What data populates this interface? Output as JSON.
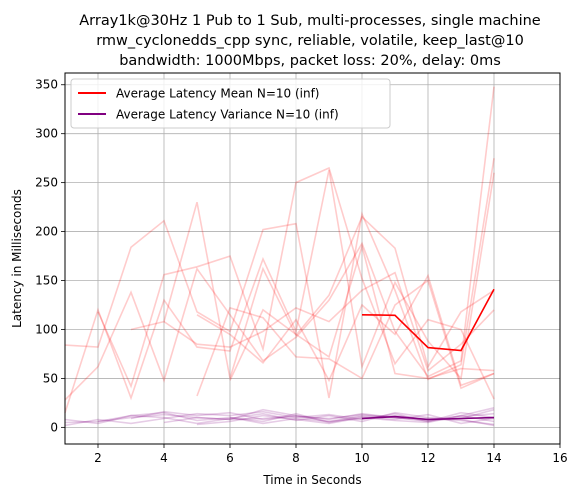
{
  "chart_data": {
    "type": "line",
    "title_lines": [
      "Array1k@30Hz 1 Pub to 1 Sub, multi-processes, single machine",
      "rmw_cyclonedds_cpp sync, reliable, volatile, keep_last@10",
      "bandwidth: 1000Mbps, packet loss: 20%, delay: 0ms"
    ],
    "xlabel": "Time in Seconds",
    "ylabel": "Latency in Milliseconds",
    "xlim": [
      1,
      16
    ],
    "ylim": [
      -17,
      362
    ],
    "xticks": [
      2,
      4,
      6,
      8,
      10,
      12,
      14,
      16
    ],
    "yticks": [
      0,
      50,
      100,
      150,
      200,
      250,
      300,
      350
    ],
    "grid": true,
    "legend_position": "top-left",
    "series": [
      {
        "name": "Average Latency Mean N=10 (inf)",
        "color": "#ff0000",
        "x": [
          10,
          11,
          12,
          13,
          14
        ],
        "y": [
          115,
          114.5,
          81.5,
          78.5,
          141
        ]
      },
      {
        "name": "Average Latency Variance N=10 (inf)",
        "color": "#800080",
        "x": [
          10,
          11,
          12,
          13,
          14
        ],
        "y": [
          9,
          11,
          8,
          9,
          10
        ]
      }
    ],
    "background_mean_runs": [
      {
        "x": [
          1,
          2,
          3,
          4,
          5,
          6,
          7,
          8,
          9,
          10,
          11,
          12,
          13,
          14
        ],
        "y": [
          28,
          62,
          138,
          48,
          162,
          115,
          68,
          92,
          130,
          188,
          98,
          52,
          68,
          348
        ]
      },
      {
        "x": [
          1,
          2,
          3,
          4,
          5,
          6,
          7,
          8,
          9,
          10,
          11,
          12,
          13,
          14
        ],
        "y": [
          84,
          82,
          184,
          211,
          118,
          98,
          202,
          208,
          30,
          218,
          140,
          49,
          64,
          275
        ]
      },
      {
        "x": [
          1,
          2,
          3,
          4,
          5,
          6,
          7,
          8,
          9,
          10,
          11,
          12,
          13,
          14
        ],
        "y": [
          15,
          120,
          30,
          130,
          82,
          78,
          172,
          98,
          263,
          62,
          148,
          88,
          50,
          260
        ]
      },
      {
        "x": [
          2,
          3,
          4,
          5,
          6,
          7,
          8,
          9,
          10,
          11,
          12,
          13,
          14
        ],
        "y": [
          118,
          42,
          156,
          164,
          175,
          80,
          250,
          265,
          152,
          65,
          110,
          100,
          29
        ]
      },
      {
        "x": [
          3,
          4,
          5,
          6,
          7,
          8,
          9,
          10,
          11,
          12,
          13,
          14
        ],
        "y": [
          100,
          108,
          230,
          50,
          162,
          94,
          135,
          215,
          183,
          62,
          118,
          140
        ]
      },
      {
        "x": [
          4,
          5,
          6,
          7,
          8,
          9,
          10,
          11,
          12,
          13,
          14
        ],
        "y": [
          108,
          85,
          82,
          98,
          122,
          108,
          140,
          158,
          58,
          85,
          120
        ]
      },
      {
        "x": [
          5,
          6,
          7,
          8,
          9,
          10,
          11,
          12,
          13,
          14
        ],
        "y": [
          32,
          122,
          112,
          72,
          70,
          50,
          125,
          150,
          40,
          55
        ]
      },
      {
        "x": [
          6,
          7,
          8,
          9,
          10,
          11,
          12,
          13,
          14
        ],
        "y": [
          48,
          120,
          95,
          72,
          185,
          55,
          50,
          60,
          58
        ]
      },
      {
        "x": [
          5,
          6,
          7,
          8,
          9,
          10,
          11,
          12,
          13,
          14
        ],
        "y": [
          115,
          95,
          66,
          110,
          48,
          125,
          95,
          155,
          43,
          55
        ]
      }
    ],
    "background_variance_runs": [
      {
        "x": [
          1,
          2,
          3,
          4,
          5,
          6,
          7,
          8,
          9,
          10,
          11,
          12,
          13,
          14
        ],
        "y": [
          5,
          6,
          10,
          13,
          10,
          8,
          9,
          12,
          8,
          14,
          10,
          7,
          9,
          18
        ]
      },
      {
        "x": [
          1,
          2,
          3,
          4,
          5,
          6,
          7,
          8,
          9,
          10,
          11,
          12,
          13,
          14
        ],
        "y": [
          2,
          8,
          4,
          9,
          14,
          12,
          16,
          10,
          13,
          8,
          14,
          6,
          12,
          20
        ]
      },
      {
        "x": [
          1,
          2,
          3,
          4,
          5,
          6,
          7,
          8,
          9,
          10,
          11,
          12,
          13,
          14
        ],
        "y": [
          8,
          4,
          12,
          15,
          7,
          10,
          6,
          14,
          5,
          11,
          8,
          13,
          4,
          9
        ]
      },
      {
        "x": [
          2,
          3,
          4,
          5,
          6,
          7,
          8,
          9,
          10,
          11,
          12,
          13,
          14
        ],
        "y": [
          6,
          12,
          10,
          4,
          9,
          14,
          7,
          12,
          6,
          15,
          10,
          8,
          2
        ]
      },
      {
        "x": [
          3,
          4,
          5,
          6,
          7,
          8,
          9,
          10,
          11,
          12,
          13,
          14
        ],
        "y": [
          9,
          16,
          12,
          15,
          8,
          11,
          9,
          13,
          10,
          6,
          15,
          10
        ]
      },
      {
        "x": [
          4,
          5,
          6,
          7,
          8,
          9,
          10,
          11,
          12,
          13,
          14
        ],
        "y": [
          5,
          10,
          8,
          18,
          12,
          6,
          9,
          12,
          8,
          11,
          14
        ]
      },
      {
        "x": [
          5,
          6,
          7,
          8,
          9,
          10,
          11,
          12,
          13,
          14
        ],
        "y": [
          3,
          6,
          12,
          8,
          4,
          10,
          7,
          5,
          12,
          6
        ]
      },
      {
        "x": [
          6,
          7,
          8,
          9,
          10,
          11,
          12,
          13,
          14
        ],
        "y": [
          10,
          4,
          9,
          6,
          12,
          10,
          9,
          7,
          3
        ]
      }
    ]
  }
}
